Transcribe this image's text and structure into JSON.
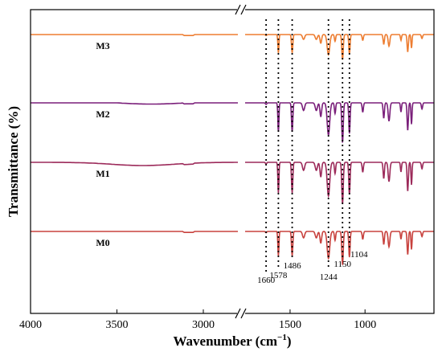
{
  "chart_data": {
    "type": "line",
    "xlabel": "Wavenumber (cm",
    "xlabel_sup": "−1",
    "xlabel_close": ")",
    "ylabel": "Transmittance (%)",
    "x_reversed": true,
    "axis_break": [
      2800,
      1800
    ],
    "xlim": [
      4000,
      540
    ],
    "x_ticks": [
      4000,
      3500,
      3000,
      1500,
      1000
    ],
    "x_tick_labels": [
      "4000",
      "3500",
      "3000",
      "1500",
      "1000"
    ],
    "y_ticks": false,
    "grid": false,
    "legend": "none",
    "series": [
      {
        "name": "M3",
        "color": "#ED7D31",
        "offset": 3
      },
      {
        "name": "M2",
        "color": "#7A1F7A",
        "offset": 2
      },
      {
        "name": "M1",
        "color": "#9C2A5A",
        "offset": 1
      },
      {
        "name": "M0",
        "color": "#C8423E",
        "offset": 0
      }
    ],
    "peaks": [
      {
        "x": 1660,
        "label": "1660"
      },
      {
        "x": 1578,
        "label": "1578"
      },
      {
        "x": 1486,
        "label": "1486"
      },
      {
        "x": 1244,
        "label": "1244"
      },
      {
        "x": 1150,
        "label": "1150"
      },
      {
        "x": 1104,
        "label": "1104"
      }
    ]
  }
}
